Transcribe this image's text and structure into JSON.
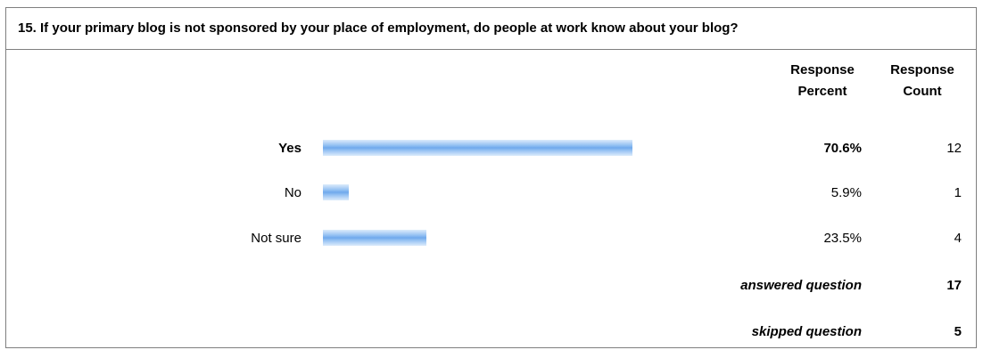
{
  "question": {
    "title": "15. If your primary blog is not sponsored by your place of employment, do people at work know about your blog?"
  },
  "headers": {
    "percent": [
      "Response",
      "Percent"
    ],
    "count": [
      "Response",
      "Count"
    ]
  },
  "summary": {
    "answered_label": "answered question",
    "answered_value": "17",
    "skipped_label": "skipped question",
    "skipped_value": "5"
  },
  "colors": {
    "bar": "#6fa8ec",
    "border": "#7f7f7f"
  },
  "chart_data": {
    "type": "bar",
    "orientation": "horizontal",
    "title": "15. If your primary blog is not sponsored by your place of employment, do people at work know about your blog?",
    "categories": [
      "Yes",
      "No",
      "Not sure"
    ],
    "series": [
      {
        "values": [
          70.6,
          5.9,
          23.5
        ]
      }
    ],
    "percent_labels": [
      "70.6%",
      "5.9%",
      "23.5%"
    ],
    "counts": [
      "12",
      "1",
      "4"
    ],
    "xlim": [
      0,
      100
    ],
    "grid": false
  }
}
